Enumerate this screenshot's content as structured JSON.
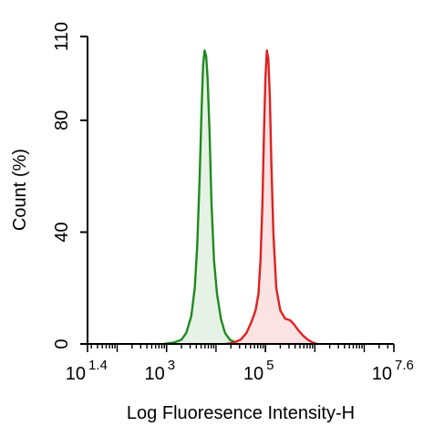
{
  "chart_data": {
    "type": "area",
    "xlabel": "Log Fluoresence Intensity-H",
    "ylabel": "Count  (%)",
    "xscale": "log10",
    "xlim": [
      1.4,
      7.6
    ],
    "ylim": [
      0,
      110
    ],
    "x_ticks": [
      {
        "base": "10",
        "exp": "1.4",
        "value": 1.4
      },
      {
        "base": "10",
        "exp": "3",
        "value": 3
      },
      {
        "base": "10",
        "exp": "5",
        "value": 5
      },
      {
        "base": "10",
        "exp": "7.6",
        "value": 7.6
      }
    ],
    "y_ticks": [
      {
        "label": "0",
        "value": 0
      },
      {
        "label": "40",
        "value": 40
      },
      {
        "label": "80",
        "value": 80
      },
      {
        "label": "110",
        "value": 110
      }
    ],
    "grid": false,
    "legend": "none",
    "series": [
      {
        "color": "#1e8a1e",
        "fill": "#e6f2e6",
        "points": [
          [
            2.95,
            0
          ],
          [
            3.15,
            0.5
          ],
          [
            3.3,
            1.5
          ],
          [
            3.4,
            4
          ],
          [
            3.5,
            10
          ],
          [
            3.57,
            20
          ],
          [
            3.62,
            35
          ],
          [
            3.67,
            60
          ],
          [
            3.71,
            85
          ],
          [
            3.74,
            100
          ],
          [
            3.77,
            105
          ],
          [
            3.8,
            103
          ],
          [
            3.83,
            95
          ],
          [
            3.87,
            75
          ],
          [
            3.91,
            50
          ],
          [
            3.96,
            30
          ],
          [
            4.02,
            18
          ],
          [
            4.1,
            9
          ],
          [
            4.18,
            4
          ],
          [
            4.28,
            1.5
          ],
          [
            4.4,
            0.5
          ],
          [
            4.55,
            0
          ]
        ]
      },
      {
        "color": "#e02020",
        "fill": "#fbe3e3",
        "points": [
          [
            4.2,
            0
          ],
          [
            4.35,
            0.5
          ],
          [
            4.5,
            1.5
          ],
          [
            4.62,
            4
          ],
          [
            4.72,
            8
          ],
          [
            4.8,
            12
          ],
          [
            4.86,
            18
          ],
          [
            4.9,
            30
          ],
          [
            4.94,
            50
          ],
          [
            4.97,
            75
          ],
          [
            5.0,
            95
          ],
          [
            5.03,
            105
          ],
          [
            5.06,
            102
          ],
          [
            5.09,
            88
          ],
          [
            5.12,
            65
          ],
          [
            5.16,
            40
          ],
          [
            5.22,
            20
          ],
          [
            5.3,
            12
          ],
          [
            5.4,
            9
          ],
          [
            5.5,
            8.5
          ],
          [
            5.58,
            7
          ],
          [
            5.66,
            5
          ],
          [
            5.76,
            3
          ],
          [
            5.86,
            1.5
          ],
          [
            5.96,
            0.5
          ],
          [
            6.05,
            0
          ]
        ]
      }
    ]
  }
}
